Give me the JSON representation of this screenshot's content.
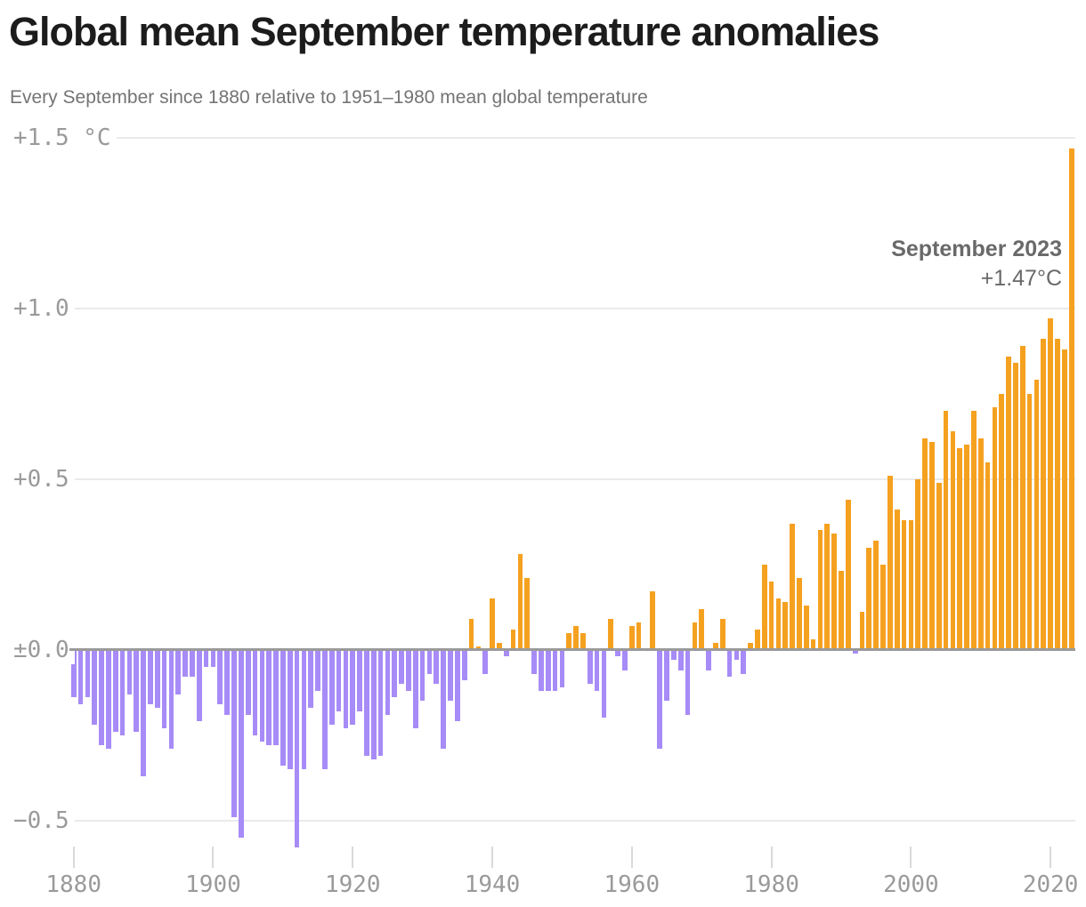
{
  "header": {
    "title": "Global mean September temperature anomalies",
    "subtitle": "Every September since 1880 relative to 1951–1980 mean global temperature"
  },
  "annotation": {
    "label": "September 2023",
    "value": "+1.47°C"
  },
  "chart_data": {
    "type": "bar",
    "title": "Global mean September temperature anomalies",
    "subtitle": "Every September since 1880 relative to 1951–1980 mean global temperature",
    "unit": "°C",
    "year_start": 1880,
    "year_end": 2023,
    "values": [
      -0.14,
      -0.16,
      -0.14,
      -0.22,
      -0.28,
      -0.29,
      -0.24,
      -0.25,
      -0.13,
      -0.24,
      -0.37,
      -0.16,
      -0.17,
      -0.23,
      -0.29,
      -0.13,
      -0.08,
      -0.08,
      -0.21,
      -0.05,
      -0.05,
      -0.16,
      -0.19,
      -0.49,
      -0.55,
      -0.19,
      -0.25,
      -0.27,
      -0.28,
      -0.28,
      -0.34,
      -0.35,
      -0.58,
      -0.35,
      -0.17,
      -0.12,
      -0.35,
      -0.22,
      -0.18,
      -0.23,
      -0.22,
      -0.18,
      -0.31,
      -0.32,
      -0.31,
      -0.19,
      -0.14,
      -0.1,
      -0.12,
      -0.23,
      -0.15,
      -0.07,
      -0.1,
      -0.29,
      -0.15,
      -0.21,
      -0.09,
      0.09,
      0.01,
      -0.07,
      0.15,
      0.02,
      -0.02,
      0.06,
      0.28,
      0.21,
      -0.07,
      -0.12,
      -0.12,
      -0.12,
      -0.11,
      0.05,
      0.07,
      0.05,
      -0.1,
      -0.12,
      -0.2,
      0.09,
      -0.02,
      -0.06,
      0.07,
      0.08,
      0.0,
      0.17,
      -0.29,
      -0.15,
      -0.03,
      -0.06,
      -0.19,
      0.08,
      0.12,
      -0.06,
      0.02,
      0.09,
      -0.08,
      -0.03,
      -0.07,
      0.02,
      0.06,
      0.25,
      0.2,
      0.15,
      0.14,
      0.37,
      0.21,
      0.13,
      0.03,
      0.35,
      0.37,
      0.34,
      0.23,
      0.44,
      -0.01,
      0.11,
      0.3,
      0.32,
      0.25,
      0.51,
      0.41,
      0.38,
      0.38,
      0.5,
      0.62,
      0.61,
      0.49,
      0.7,
      0.64,
      0.59,
      0.6,
      0.7,
      0.62,
      0.55,
      0.71,
      0.75,
      0.86,
      0.84,
      0.89,
      0.75,
      0.79,
      0.91,
      0.97,
      0.91,
      0.88,
      1.47
    ],
    "highlight": {
      "year": 2023,
      "value": 1.47,
      "label": "September 2023",
      "value_label": "+1.47°C"
    },
    "x_ticks": [
      1880,
      1900,
      1920,
      1940,
      1960,
      1980,
      2000,
      2020
    ],
    "y_ticks": [
      {
        "label": "+1.5 °C",
        "value": 1.5
      },
      {
        "label": "+1.0",
        "value": 1.0
      },
      {
        "label": "+0.5",
        "value": 0.5
      },
      {
        "label": "±0.0",
        "value": 0.0
      },
      {
        "label": "−0.5",
        "value": -0.5
      }
    ],
    "ylim": [
      -0.62,
      1.5
    ],
    "grid": "on",
    "legend": "none",
    "colors": {
      "positive": "#F5A120",
      "negative": "#A78BF7",
      "zero_line": "#9a9a9a",
      "gridline": "#eaeaea",
      "axis_text": "#9a9a9a",
      "title_text": "#1c1c1c",
      "subtitle_text": "#747474",
      "annotation_text": "#696969"
    }
  }
}
